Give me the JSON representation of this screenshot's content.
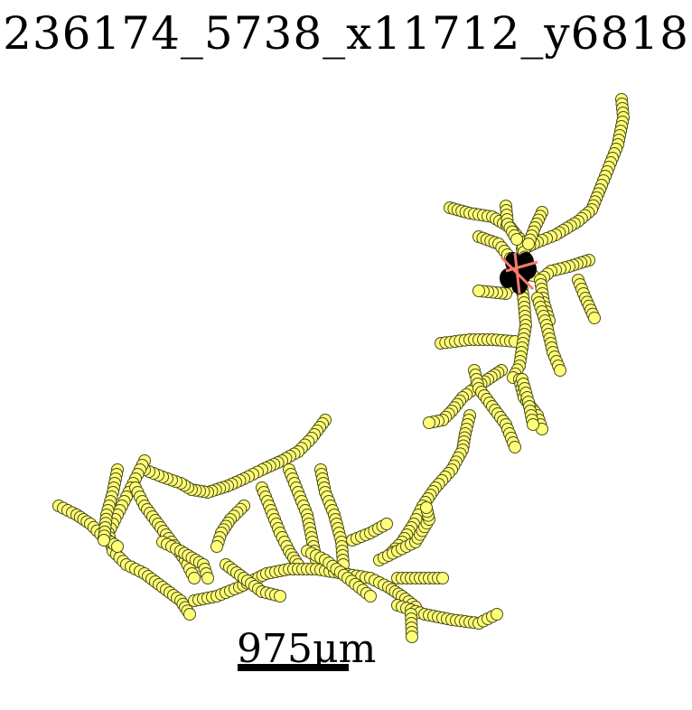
{
  "title": "236174_5738_x11712_y6818",
  "scale_bar": {
    "label": "975μm"
  },
  "colors": {
    "node_fill": "#ffff7a",
    "node_stroke": "#4a4a1a",
    "edge": "#fa7b6e",
    "soma": "#000000",
    "scale_bar": "#000000"
  }
}
